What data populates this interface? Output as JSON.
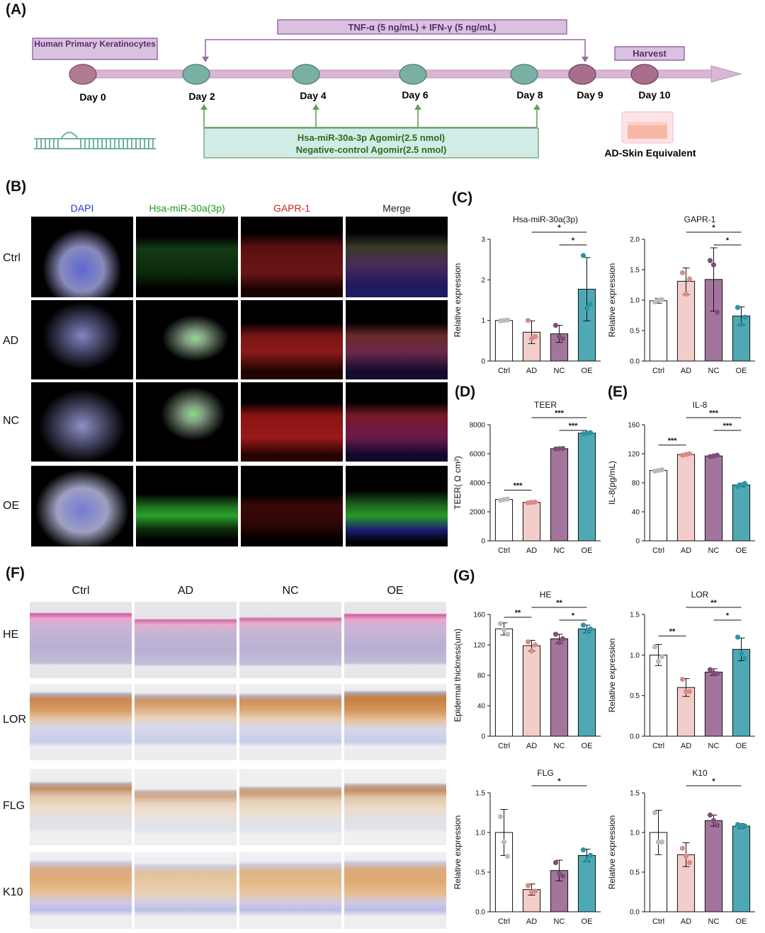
{
  "panels": {
    "A": "(A)",
    "B": "(B)",
    "C": "(C)",
    "D": "(D)",
    "E": "(E)",
    "F": "(F)",
    "G": "(G)"
  },
  "timeline": {
    "start_cell": "Human Primary Keratinocytes",
    "treatment": "TNF-α (5 ng/mL) + IFN-γ (5 ng/mL)",
    "harvest": "Harvest",
    "days": [
      "Day 0",
      "Day 2",
      "Day 4",
      "Day 6",
      "Day 8",
      "Day 9",
      "Day 10"
    ],
    "agomir_line1": "Hsa-miR-30a-3p Agomir(2.5 nmol)",
    "agomir_line2": "Negative-control Agomir(2.5 nmol)",
    "endpoint": "AD-Skin Equivalent",
    "colors": {
      "day_start": "#b07a93",
      "day_mid": "#7ab0a3",
      "day_end": "#a86f8a",
      "line": "#d8b6d4",
      "box_fill": "#d9c1e0",
      "box_border": "#9b6aa8",
      "green_box": "#d1ece7",
      "green_border": "#6a9a5d",
      "green_text": "#2f6b1e"
    }
  },
  "fluor": {
    "columns": [
      "DAPI",
      "Hsa-miR-30a(3p)",
      "GAPR-1",
      "Merge"
    ],
    "column_colors": [
      "#2233cc",
      "#1a9a1a",
      "#cc2222",
      "#222222"
    ],
    "rows": [
      "Ctrl",
      "AD",
      "NC",
      "OE"
    ]
  },
  "histo": {
    "columns": [
      "Ctrl",
      "AD",
      "NC",
      "OE"
    ],
    "rows": [
      "HE",
      "LOR",
      "FLG",
      "K10"
    ]
  },
  "bar_colors": [
    "#ffffff",
    "#f2cdc9",
    "#a4759c",
    "#4fa9b4"
  ],
  "dot_colors": [
    "#bbbbbb",
    "#d98b86",
    "#7e4e79",
    "#2a95a5"
  ],
  "chart_data": [
    {
      "id": "C1",
      "type": "bar",
      "title": "Hsa-miR-30a(3p)",
      "ylabel": "Relative expression",
      "categories": [
        "Ctrl",
        "AD",
        "NC",
        "OE"
      ],
      "values": [
        1.0,
        0.71,
        0.67,
        1.77
      ],
      "errors": [
        0.03,
        0.28,
        0.21,
        0.78
      ],
      "points": [
        [
          0.99,
          1.0,
          1.01
        ],
        [
          1.0,
          0.55,
          0.6
        ],
        [
          0.88,
          0.6,
          0.55
        ],
        [
          2.6,
          1.3,
          1.4
        ]
      ],
      "ylim": [
        0,
        3
      ],
      "yticks": [
        0,
        1,
        2,
        3
      ],
      "sig": [
        {
          "from": 1,
          "to": 3,
          "label": "*"
        },
        {
          "from": 2,
          "to": 3,
          "label": "*"
        }
      ]
    },
    {
      "id": "C2",
      "type": "bar",
      "title": "GAPR-1",
      "ylabel": "Relative expression",
      "categories": [
        "Ctrl",
        "AD",
        "NC",
        "OE"
      ],
      "values": [
        0.99,
        1.31,
        1.34,
        0.74
      ],
      "errors": [
        0.04,
        0.22,
        0.52,
        0.15
      ],
      "points": [
        [
          0.97,
          1.0,
          1.01
        ],
        [
          1.45,
          1.1,
          1.35
        ],
        [
          1.65,
          1.58,
          0.8
        ],
        [
          0.88,
          0.6,
          0.72
        ]
      ],
      "ylim": [
        0,
        2.0
      ],
      "yticks": [
        0.0,
        0.5,
        1.0,
        1.5,
        2.0
      ],
      "sig": [
        {
          "from": 1,
          "to": 3,
          "label": "*"
        },
        {
          "from": 2,
          "to": 3,
          "label": "*"
        }
      ]
    },
    {
      "id": "D",
      "type": "bar",
      "title": "TEER",
      "ylabel": "TEER( Ω cm²)",
      "categories": [
        "Ctrl",
        "AD",
        "NC",
        "OE"
      ],
      "values": [
        2850,
        2650,
        6350,
        7420
      ],
      "errors": [
        60,
        40,
        40,
        50
      ],
      "points": [
        [
          2800,
          2850,
          2880
        ],
        [
          2620,
          2650,
          2670
        ],
        [
          6330,
          6350,
          6370
        ],
        [
          7380,
          7420,
          7450
        ]
      ],
      "ylim": [
        0,
        8000
      ],
      "yticks": [
        0,
        2000,
        4000,
        6000,
        8000
      ],
      "sig": [
        {
          "from": 0,
          "to": 1,
          "label": "***"
        },
        {
          "from": 1,
          "to": 3,
          "label": "***"
        },
        {
          "from": 2,
          "to": 3,
          "label": "***"
        }
      ]
    },
    {
      "id": "E",
      "type": "bar",
      "title": "IL-8",
      "ylabel": "IL-8(pg/mL)",
      "categories": [
        "Ctrl",
        "AD",
        "NC",
        "OE"
      ],
      "values": [
        97,
        119,
        117,
        77
      ],
      "errors": [
        1.5,
        1.2,
        1.0,
        2.5
      ],
      "points": [
        [
          96,
          97,
          98
        ],
        [
          118,
          119,
          120
        ],
        [
          116,
          117,
          118
        ],
        [
          75,
          77,
          79
        ]
      ],
      "ylim": [
        0,
        160
      ],
      "yticks": [
        0,
        40,
        80,
        120,
        160
      ],
      "sig": [
        {
          "from": 0,
          "to": 1,
          "label": "***"
        },
        {
          "from": 1,
          "to": 3,
          "label": "***"
        },
        {
          "from": 2,
          "to": 3,
          "label": "***"
        }
      ]
    },
    {
      "id": "G1",
      "type": "bar",
      "title": "HE",
      "ylabel": "Epidermal thickness(um)",
      "categories": [
        "Ctrl",
        "AD",
        "NC",
        "OE"
      ],
      "values": [
        141,
        119,
        128,
        141
      ],
      "errors": [
        8,
        7,
        6,
        5
      ],
      "points": [
        [
          148,
          140,
          134
        ],
        [
          124,
          112,
          120
        ],
        [
          134,
          123,
          128
        ],
        [
          146,
          138,
          141
        ]
      ],
      "ylim": [
        0,
        160
      ],
      "yticks": [
        0,
        40,
        80,
        120,
        160
      ],
      "sig": [
        {
          "from": 0,
          "to": 1,
          "label": "**"
        },
        {
          "from": 1,
          "to": 3,
          "label": "**"
        },
        {
          "from": 2,
          "to": 3,
          "label": "*"
        }
      ]
    },
    {
      "id": "G2",
      "type": "bar",
      "title": "LOR",
      "ylabel": "Relative expression",
      "categories": [
        "Ctrl",
        "AD",
        "NC",
        "OE"
      ],
      "values": [
        1.0,
        0.6,
        0.79,
        1.07
      ],
      "errors": [
        0.13,
        0.11,
        0.04,
        0.14
      ],
      "points": [
        [
          1.1,
          0.92,
          0.98
        ],
        [
          0.7,
          0.55,
          0.55
        ],
        [
          0.82,
          0.78,
          0.77
        ],
        [
          1.22,
          1.02,
          0.96
        ]
      ],
      "ylim": [
        0,
        1.5
      ],
      "yticks": [
        0.0,
        0.5,
        1.0,
        1.5
      ],
      "sig": [
        {
          "from": 0,
          "to": 1,
          "label": "**"
        },
        {
          "from": 1,
          "to": 3,
          "label": "**"
        },
        {
          "from": 2,
          "to": 3,
          "label": "*"
        }
      ]
    },
    {
      "id": "G3",
      "type": "bar",
      "title": "FLG",
      "ylabel": "Relative expression",
      "categories": [
        "Ctrl",
        "AD",
        "NC",
        "OE"
      ],
      "values": [
        1.0,
        0.28,
        0.52,
        0.71
      ],
      "errors": [
        0.29,
        0.07,
        0.13,
        0.08
      ],
      "points": [
        [
          1.2,
          0.88,
          0.7
        ],
        [
          0.33,
          0.25,
          0.26
        ],
        [
          0.62,
          0.48,
          0.45
        ],
        [
          0.78,
          0.65,
          0.71
        ]
      ],
      "ylim": [
        0,
        1.5
      ],
      "yticks": [
        0.0,
        0.5,
        1.0,
        1.5
      ],
      "sig": [
        {
          "from": 1,
          "to": 3,
          "label": "*"
        }
      ]
    },
    {
      "id": "G4",
      "type": "bar",
      "title": "K10",
      "ylabel": "Relative expression",
      "categories": [
        "Ctrl",
        "AD",
        "NC",
        "OE"
      ],
      "values": [
        1.0,
        0.72,
        1.15,
        1.08
      ],
      "errors": [
        0.28,
        0.15,
        0.07,
        0.03
      ],
      "points": [
        [
          1.25,
          0.88,
          0.88
        ],
        [
          0.8,
          0.7,
          0.62
        ],
        [
          1.22,
          1.15,
          1.09
        ],
        [
          1.1,
          1.07,
          1.08
        ]
      ],
      "ylim": [
        0,
        1.5
      ],
      "yticks": [
        0.0,
        0.5,
        1.0,
        1.5
      ],
      "sig": [
        {
          "from": 1,
          "to": 3,
          "label": "*"
        }
      ]
    }
  ]
}
